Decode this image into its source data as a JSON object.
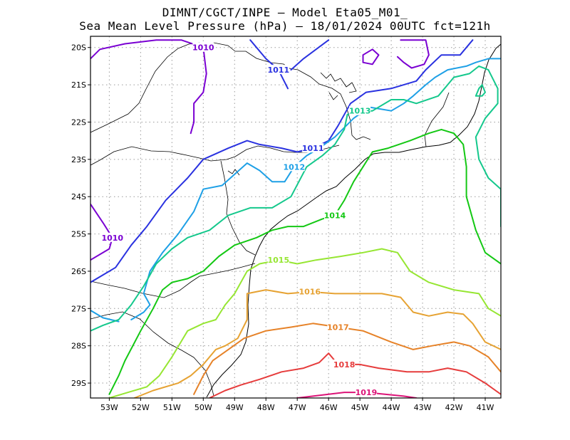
{
  "header": {
    "line1": "DIMNT/CGCT/INPE —  Model Eta05_M01_",
    "line2": "Sea Mean Level Pressure (hPa) — 18/01/2024 00UTC fct=121h"
  },
  "chart_data": {
    "type": "contour",
    "x_ticks": [
      "53W",
      "52W",
      "51W",
      "50W",
      "49W",
      "48W",
      "47W",
      "46W",
      "45W",
      "44W",
      "43W",
      "42W",
      "41W"
    ],
    "y_ticks": [
      "20S",
      "21S",
      "22S",
      "23S",
      "24S",
      "25S",
      "26S",
      "27S",
      "28S",
      "29S"
    ],
    "xlim": [
      -53.6,
      -40.5
    ],
    "ylim": [
      -29.4,
      -19.7
    ],
    "grid": true,
    "levels": [
      {
        "value": 1010,
        "label": "1010",
        "color": "#7a00d2",
        "points": [
          [
            -53.6,
            -20.3
          ],
          [
            -53.3,
            -20.05
          ],
          [
            -52.5,
            -19.9
          ],
          [
            -51.5,
            -19.8
          ],
          [
            -50.7,
            -19.8
          ],
          [
            -50.0,
            -20.0
          ],
          [
            -49.9,
            -20.7
          ],
          [
            -50.0,
            -21.2
          ],
          [
            -50.3,
            -21.5
          ],
          [
            -50.3,
            -22.0
          ],
          [
            -50.4,
            -22.3
          ]
        ]
      },
      {
        "value": 1010,
        "label": "1010",
        "color": "#7a00d2",
        "points": [
          [
            -53.6,
            -24.2
          ],
          [
            -53.2,
            -24.7
          ],
          [
            -52.9,
            -25.1
          ],
          [
            -53.0,
            -25.4
          ],
          [
            -53.6,
            -25.7
          ]
        ]
      },
      {
        "value": 1010,
        "label": "",
        "color": "#7a00d2",
        "points": [
          [
            -44.9,
            -20.2
          ],
          [
            -44.6,
            -20.05
          ],
          [
            -44.4,
            -20.2
          ],
          [
            -44.6,
            -20.45
          ],
          [
            -44.9,
            -20.4
          ],
          [
            -44.9,
            -20.2
          ]
        ]
      },
      {
        "value": 1010,
        "label": "",
        "color": "#7a00d2",
        "points": [
          [
            -43.7,
            -19.8
          ],
          [
            -43.3,
            -19.8
          ],
          [
            -42.9,
            -19.8
          ],
          [
            -42.8,
            -20.2
          ],
          [
            -42.95,
            -20.45
          ],
          [
            -43.35,
            -20.55
          ],
          [
            -43.6,
            -20.4
          ],
          [
            -43.8,
            -20.25
          ]
        ]
      },
      {
        "value": 1011,
        "label": "1011",
        "color": "#2a32e0",
        "points": [
          [
            -53.6,
            -26.3
          ],
          [
            -52.8,
            -25.9
          ],
          [
            -52.3,
            -25.3
          ],
          [
            -51.8,
            -24.8
          ],
          [
            -51.2,
            -24.1
          ],
          [
            -50.5,
            -23.5
          ],
          [
            -50.0,
            -23.0
          ],
          [
            -49.2,
            -22.7
          ],
          [
            -48.6,
            -22.5
          ],
          [
            -48.2,
            -22.6
          ],
          [
            -47.5,
            -22.7
          ],
          [
            -47.0,
            -22.8
          ],
          [
            -46.5,
            -22.7
          ],
          [
            -46.0,
            -22.5
          ],
          [
            -45.7,
            -22.1
          ],
          [
            -45.3,
            -21.5
          ],
          [
            -44.8,
            -21.2
          ],
          [
            -44.0,
            -21.1
          ],
          [
            -43.2,
            -20.9
          ],
          [
            -42.9,
            -20.6
          ],
          [
            -42.4,
            -20.2
          ],
          [
            -41.8,
            -20.2
          ],
          [
            -41.6,
            -20.0
          ],
          [
            -41.4,
            -19.8
          ]
        ]
      },
      {
        "value": 1011,
        "label": "1011",
        "color": "#2a32e0",
        "points": [
          [
            -48.5,
            -19.8
          ],
          [
            -48.0,
            -20.3
          ],
          [
            -47.6,
            -20.6
          ],
          [
            -47.3,
            -21.1
          ]
        ]
      },
      {
        "value": 1011,
        "label": "",
        "color": "#2a32e0",
        "points": [
          [
            -46.0,
            -19.8
          ],
          [
            -46.8,
            -20.3
          ],
          [
            -47.2,
            -20.6
          ]
        ]
      },
      {
        "value": 1012,
        "label": "1012",
        "color": "#1ea0e6",
        "points": [
          [
            -52.3,
            -27.3
          ],
          [
            -51.9,
            -27.1
          ],
          [
            -51.7,
            -26.9
          ],
          [
            -51.9,
            -26.6
          ],
          [
            -51.7,
            -26.0
          ],
          [
            -51.3,
            -25.5
          ],
          [
            -50.8,
            -25.0
          ],
          [
            -50.3,
            -24.4
          ],
          [
            -50.0,
            -23.8
          ],
          [
            -49.4,
            -23.7
          ],
          [
            -49.0,
            -23.4
          ],
          [
            -48.6,
            -23.1
          ],
          [
            -48.2,
            -23.3
          ],
          [
            -47.8,
            -23.6
          ],
          [
            -47.4,
            -23.6
          ],
          [
            -47.1,
            -23.2
          ],
          [
            -46.7,
            -22.9
          ],
          [
            -46.3,
            -22.7
          ],
          [
            -45.8,
            -22.4
          ],
          [
            -45.2,
            -21.9
          ],
          [
            -44.7,
            -21.6
          ],
          [
            -44.0,
            -21.7
          ],
          [
            -43.6,
            -21.5
          ],
          [
            -43.3,
            -21.3
          ],
          [
            -42.9,
            -21.0
          ],
          [
            -42.6,
            -20.8
          ],
          [
            -42.2,
            -20.6
          ],
          [
            -41.6,
            -20.5
          ],
          [
            -41.3,
            -20.4
          ],
          [
            -40.9,
            -20.3
          ],
          [
            -40.5,
            -20.3
          ]
        ]
      },
      {
        "value": 1012,
        "label": "",
        "color": "#1ea0e6",
        "points": [
          [
            -53.6,
            -27.05
          ],
          [
            -53.2,
            -27.25
          ],
          [
            -52.7,
            -27.35
          ]
        ]
      },
      {
        "value": 1013,
        "label": "1013",
        "color": "#14c88c",
        "points": [
          [
            -53.6,
            -27.6
          ],
          [
            -53.2,
            -27.45
          ],
          [
            -52.7,
            -27.3
          ],
          [
            -52.3,
            -26.9
          ],
          [
            -51.9,
            -26.4
          ],
          [
            -51.5,
            -25.8
          ],
          [
            -51.0,
            -25.4
          ],
          [
            -50.5,
            -25.1
          ],
          [
            -49.8,
            -24.9
          ],
          [
            -49.2,
            -24.5
          ],
          [
            -48.5,
            -24.3
          ],
          [
            -47.8,
            -24.3
          ],
          [
            -47.2,
            -24.0
          ],
          [
            -46.7,
            -23.2
          ],
          [
            -46.2,
            -22.9
          ],
          [
            -45.8,
            -22.6
          ],
          [
            -45.5,
            -22.2
          ],
          [
            -45.4,
            -21.8
          ],
          [
            -45.0,
            -21.7
          ],
          [
            -44.6,
            -21.7
          ],
          [
            -44.0,
            -21.4
          ],
          [
            -43.6,
            -21.4
          ],
          [
            -43.2,
            -21.5
          ],
          [
            -42.5,
            -21.3
          ],
          [
            -42.0,
            -20.8
          ],
          [
            -41.5,
            -20.7
          ],
          [
            -41.2,
            -20.5
          ],
          [
            -40.9,
            -20.6
          ],
          [
            -40.6,
            -21.1
          ],
          [
            -40.6,
            -21.5
          ],
          [
            -41.0,
            -21.9
          ],
          [
            -41.3,
            -22.4
          ],
          [
            -41.2,
            -23.0
          ],
          [
            -40.9,
            -23.5
          ],
          [
            -40.5,
            -23.8
          ],
          [
            -40.5,
            -24.8
          ]
        ]
      },
      {
        "value": 1013,
        "label": "",
        "color": "#14c88c",
        "points": [
          [
            -41.2,
            -21.1
          ],
          [
            -41.3,
            -21.3
          ],
          [
            -41.1,
            -21.3
          ],
          [
            -41.0,
            -21.2
          ],
          [
            -41.1,
            -21.0
          ],
          [
            -41.2,
            -21.1
          ]
        ]
      },
      {
        "value": 1014,
        "label": "1014",
        "color": "#14c814",
        "points": [
          [
            -53.0,
            -29.3
          ],
          [
            -52.7,
            -28.8
          ],
          [
            -52.5,
            -28.4
          ],
          [
            -52.0,
            -27.6
          ],
          [
            -51.6,
            -27.0
          ],
          [
            -51.3,
            -26.5
          ],
          [
            -51.0,
            -26.3
          ],
          [
            -50.5,
            -26.2
          ],
          [
            -50.0,
            -26.0
          ],
          [
            -49.5,
            -25.6
          ],
          [
            -49.0,
            -25.3
          ],
          [
            -48.3,
            -25.1
          ],
          [
            -47.8,
            -24.9
          ],
          [
            -47.3,
            -24.8
          ],
          [
            -46.8,
            -24.8
          ],
          [
            -46.2,
            -24.6
          ],
          [
            -45.8,
            -24.5
          ],
          [
            -45.5,
            -24.1
          ],
          [
            -45.2,
            -23.6
          ],
          [
            -44.9,
            -23.2
          ],
          [
            -44.6,
            -22.8
          ],
          [
            -44.1,
            -22.7
          ],
          [
            -43.4,
            -22.5
          ],
          [
            -42.8,
            -22.3
          ],
          [
            -42.4,
            -22.2
          ],
          [
            -42.0,
            -22.3
          ],
          [
            -41.7,
            -22.6
          ],
          [
            -41.6,
            -23.2
          ],
          [
            -41.6,
            -24.0
          ],
          [
            -41.3,
            -24.9
          ],
          [
            -41.0,
            -25.5
          ],
          [
            -40.5,
            -25.8
          ]
        ]
      },
      {
        "value": 1015,
        "label": "1015",
        "color": "#96e632",
        "points": [
          [
            -53.0,
            -29.4
          ],
          [
            -52.4,
            -29.25
          ],
          [
            -51.8,
            -29.1
          ],
          [
            -51.4,
            -28.8
          ],
          [
            -51.0,
            -28.3
          ],
          [
            -50.5,
            -27.6
          ],
          [
            -50.0,
            -27.4
          ],
          [
            -49.6,
            -27.3
          ],
          [
            -49.3,
            -26.9
          ],
          [
            -49.0,
            -26.6
          ],
          [
            -48.6,
            -26.0
          ],
          [
            -48.2,
            -25.8
          ],
          [
            -47.6,
            -25.7
          ],
          [
            -47.0,
            -25.8
          ],
          [
            -46.4,
            -25.7
          ],
          [
            -45.6,
            -25.6
          ],
          [
            -44.9,
            -25.5
          ],
          [
            -44.3,
            -25.4
          ],
          [
            -43.8,
            -25.5
          ],
          [
            -43.4,
            -26.0
          ],
          [
            -42.8,
            -26.3
          ],
          [
            -42.0,
            -26.5
          ],
          [
            -41.2,
            -26.6
          ],
          [
            -40.9,
            -27.0
          ],
          [
            -40.5,
            -27.2
          ]
        ]
      },
      {
        "value": 1016,
        "label": "1016",
        "color": "#e6a232",
        "points": [
          [
            -52.2,
            -29.4
          ],
          [
            -51.6,
            -29.2
          ],
          [
            -50.8,
            -29.0
          ],
          [
            -50.4,
            -28.8
          ],
          [
            -50.0,
            -28.5
          ],
          [
            -49.6,
            -28.1
          ],
          [
            -49.3,
            -28.0
          ],
          [
            -48.9,
            -27.8
          ],
          [
            -48.6,
            -27.3
          ],
          [
            -48.6,
            -26.6
          ],
          [
            -48.0,
            -26.5
          ],
          [
            -47.3,
            -26.6
          ],
          [
            -46.6,
            -26.55
          ],
          [
            -45.8,
            -26.6
          ],
          [
            -45.0,
            -26.6
          ],
          [
            -44.3,
            -26.6
          ],
          [
            -43.7,
            -26.7
          ],
          [
            -43.3,
            -27.1
          ],
          [
            -42.8,
            -27.2
          ],
          [
            -42.2,
            -27.1
          ],
          [
            -41.7,
            -27.15
          ],
          [
            -41.4,
            -27.4
          ],
          [
            -41.0,
            -27.9
          ],
          [
            -40.5,
            -28.1
          ]
        ]
      },
      {
        "value": 1017,
        "label": "1017",
        "color": "#e68228",
        "points": [
          [
            -50.3,
            -29.3
          ],
          [
            -50.0,
            -28.8
          ],
          [
            -49.7,
            -28.4
          ],
          [
            -49.2,
            -28.1
          ],
          [
            -48.7,
            -27.8
          ],
          [
            -48.0,
            -27.6
          ],
          [
            -47.2,
            -27.5
          ],
          [
            -46.5,
            -27.4
          ],
          [
            -45.7,
            -27.5
          ],
          [
            -44.9,
            -27.6
          ],
          [
            -44.0,
            -27.9
          ],
          [
            -43.3,
            -28.1
          ],
          [
            -42.7,
            -28.0
          ],
          [
            -42.0,
            -27.9
          ],
          [
            -41.5,
            -28.0
          ],
          [
            -40.9,
            -28.3
          ],
          [
            -40.5,
            -28.7
          ]
        ]
      },
      {
        "value": 1018,
        "label": "1018",
        "color": "#e63c3c",
        "points": [
          [
            -49.8,
            -29.4
          ],
          [
            -49.3,
            -29.2
          ],
          [
            -48.8,
            -29.05
          ],
          [
            -48.2,
            -28.9
          ],
          [
            -47.5,
            -28.7
          ],
          [
            -46.8,
            -28.6
          ],
          [
            -46.3,
            -28.45
          ],
          [
            -46.0,
            -28.2
          ],
          [
            -45.8,
            -28.4
          ],
          [
            -45.5,
            -28.5
          ],
          [
            -45.0,
            -28.5
          ],
          [
            -44.4,
            -28.6
          ],
          [
            -43.5,
            -28.7
          ],
          [
            -42.8,
            -28.7
          ],
          [
            -42.2,
            -28.6
          ],
          [
            -41.6,
            -28.7
          ],
          [
            -41.0,
            -29.0
          ],
          [
            -40.5,
            -29.3
          ]
        ]
      },
      {
        "value": 1019,
        "label": "1019",
        "color": "#dc1478",
        "points": [
          [
            -47.0,
            -29.4
          ],
          [
            -46.5,
            -29.35
          ],
          [
            -46.0,
            -29.3
          ],
          [
            -45.5,
            -29.25
          ],
          [
            -44.8,
            -29.25
          ],
          [
            -44.2,
            -29.3
          ],
          [
            -43.6,
            -29.35
          ],
          [
            -43.2,
            -29.4
          ]
        ]
      }
    ]
  }
}
